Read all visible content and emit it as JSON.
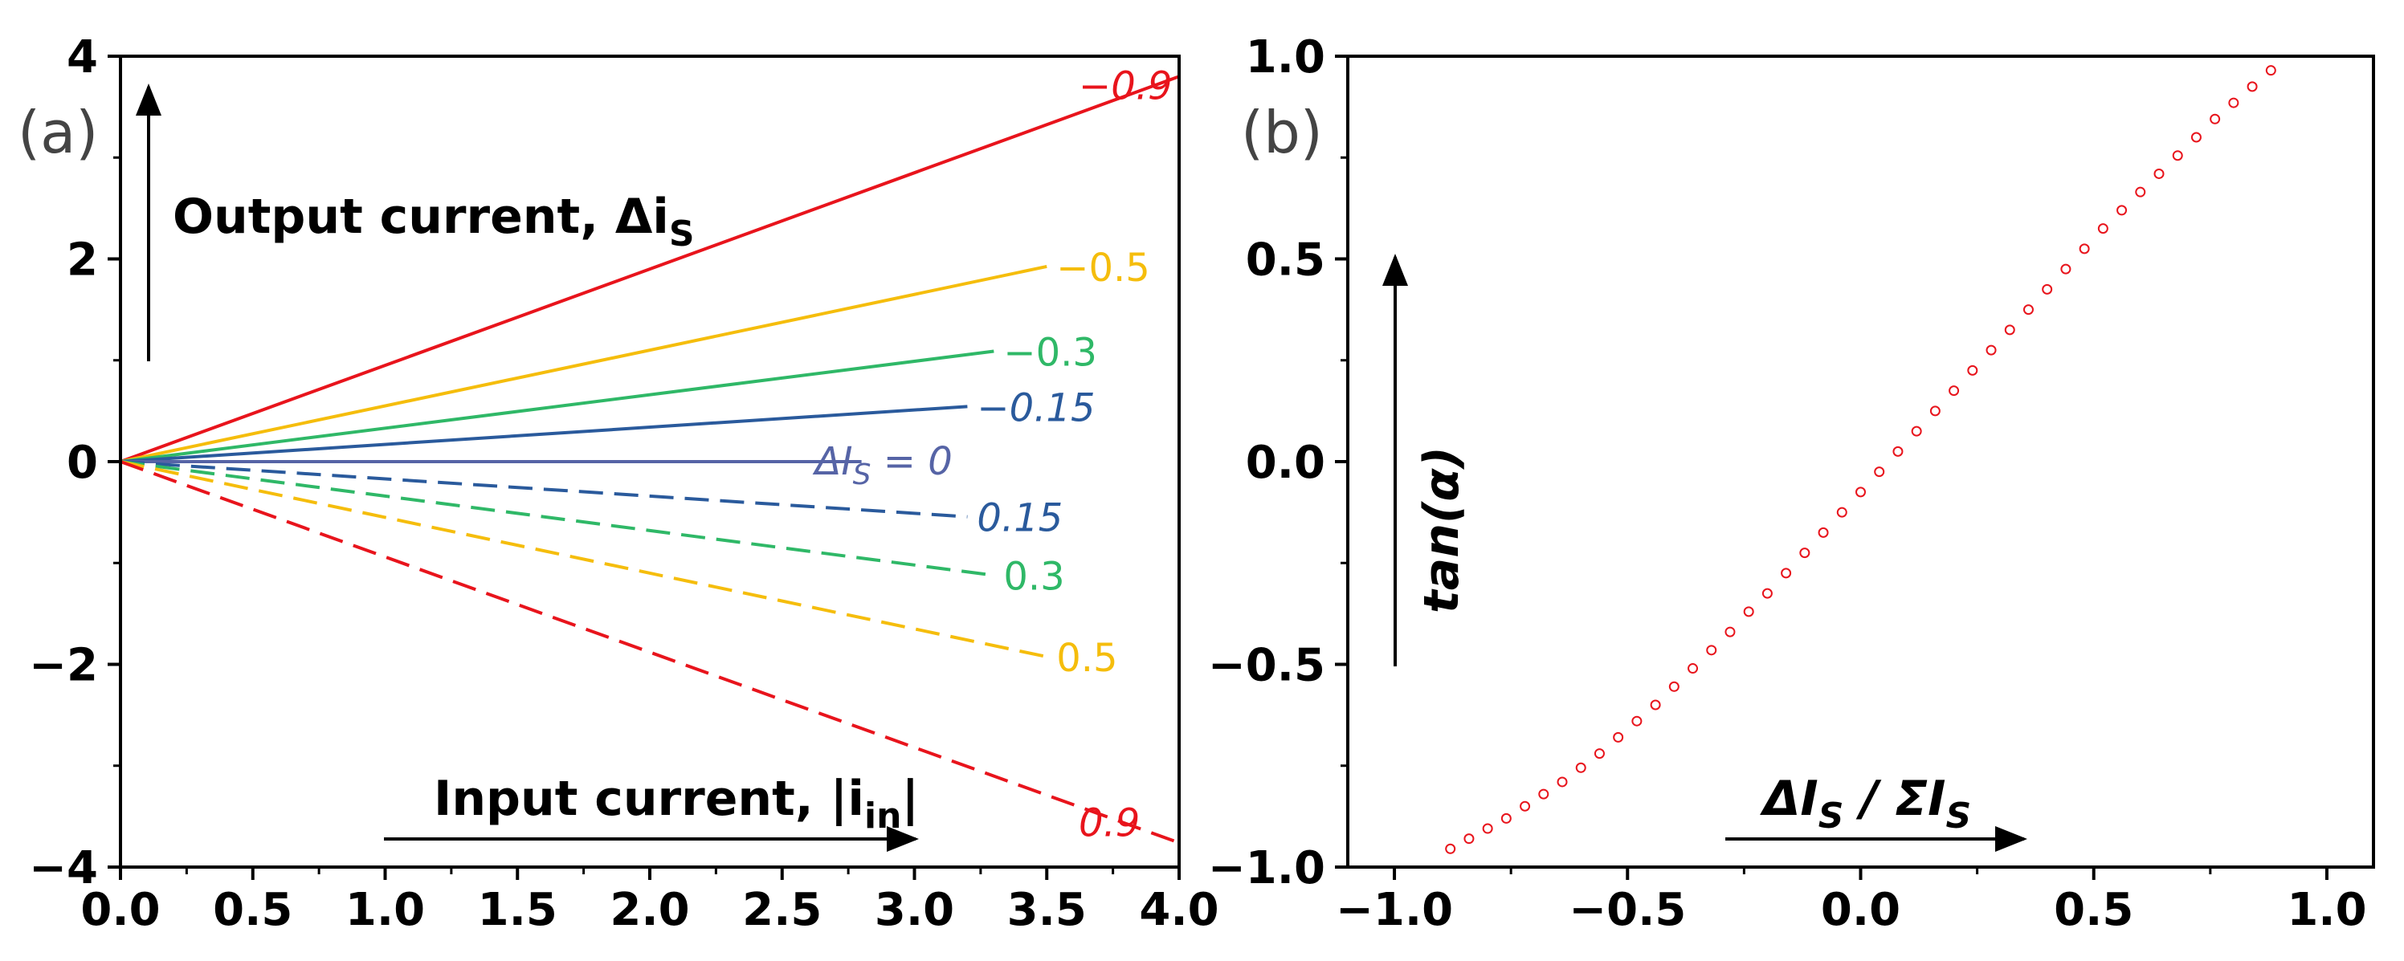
{
  "chart_data": [
    {
      "type": "line",
      "panel_label": "(a)",
      "xlim": [
        0,
        4
      ],
      "ylim": [
        -4,
        4
      ],
      "x_ticks": [
        0,
        0.5,
        1,
        1.5,
        2,
        2.5,
        3,
        3.5,
        4
      ],
      "x_tick_labels": [
        "0.0",
        "0.5",
        "1.0",
        "1.5",
        "2.0",
        "2.5",
        "3.0",
        "3.5",
        "4.0"
      ],
      "y_ticks": [
        -4,
        -2,
        0,
        2,
        4
      ],
      "y_tick_labels": [
        "−4",
        "−2",
        "0",
        "2",
        "4"
      ],
      "ylabel_arrow": "Output current, Δi",
      "ylabel_sub": "S",
      "xlabel_arrow": "Input current, |i",
      "xlabel_sub": "in",
      "xlabel_suffix": "|",
      "series": [
        {
          "name": "−0.9",
          "slope": 0.95,
          "x_end": 4.0,
          "color": "#e8141c",
          "dash": false
        },
        {
          "name": "−0.5",
          "slope": 0.55,
          "x_end": 3.5,
          "color": "#f5bd0c",
          "dash": false
        },
        {
          "name": "−0.3",
          "slope": 0.33,
          "x_end": 3.3,
          "color": "#2fb867",
          "dash": false
        },
        {
          "name": "−0.15",
          "slope": 0.17,
          "x_end": 3.2,
          "color": "#2a5a9c",
          "dash": false
        },
        {
          "name": "ΔI",
          "name_sub": "S",
          "name_suffix": " = 0",
          "slope": 0.0,
          "x_end": 2.8,
          "color": "#5664a6",
          "dash": false
        },
        {
          "name": "0.15",
          "slope": -0.17,
          "x_end": 3.2,
          "color": "#2a5a9c",
          "dash": true
        },
        {
          "name": "0.3",
          "slope": -0.34,
          "x_end": 3.3,
          "color": "#2fb867",
          "dash": true
        },
        {
          "name": "0.5",
          "slope": -0.55,
          "x_end": 3.5,
          "color": "#f5bd0c",
          "dash": true
        },
        {
          "name": "0.9",
          "slope": -0.94,
          "x_end": 4.0,
          "color": "#e8141c",
          "dash": true
        }
      ]
    },
    {
      "type": "scatter",
      "panel_label": "(b)",
      "xlim": [
        -1.1,
        1.1
      ],
      "ylim": [
        -1,
        1
      ],
      "x_ticks": [
        -1,
        -0.5,
        0,
        0.5,
        1
      ],
      "x_tick_labels": [
        "−1.0",
        "−0.5",
        "0.0",
        "0.5",
        "1.0"
      ],
      "y_ticks": [
        -1,
        -0.5,
        0,
        0.5,
        1
      ],
      "y_tick_labels": [
        "−1.0",
        "−0.5",
        "0.0",
        "0.5",
        "1.0"
      ],
      "ylabel_arrow": "tan(α)",
      "xlabel_arrow_parts": [
        "ΔI",
        "S",
        " / ΣI",
        "S"
      ],
      "marker_color": "#e8141c",
      "x": [
        -0.88,
        -0.84,
        -0.8,
        -0.76,
        -0.72,
        -0.68,
        -0.64,
        -0.6,
        -0.56,
        -0.52,
        -0.48,
        -0.44,
        -0.4,
        -0.36,
        -0.32,
        -0.28,
        -0.24,
        -0.2,
        -0.16,
        -0.12,
        -0.08,
        -0.04,
        0.0,
        0.04,
        0.08,
        0.12,
        0.16,
        0.2,
        0.24,
        0.28,
        0.32,
        0.36,
        0.4,
        0.44,
        0.48,
        0.52,
        0.56,
        0.6,
        0.64,
        0.68,
        0.72,
        0.76,
        0.8,
        0.84,
        0.88
      ],
      "y": [
        -0.955,
        -0.93,
        -0.905,
        -0.88,
        -0.85,
        -0.82,
        -0.79,
        -0.755,
        -0.72,
        -0.68,
        -0.64,
        -0.6,
        -0.555,
        -0.51,
        -0.465,
        -0.42,
        -0.37,
        -0.325,
        -0.275,
        -0.225,
        -0.175,
        -0.125,
        -0.075,
        -0.025,
        0.025,
        0.075,
        0.125,
        0.175,
        0.225,
        0.275,
        0.325,
        0.375,
        0.425,
        0.475,
        0.525,
        0.575,
        0.62,
        0.665,
        0.71,
        0.755,
        0.8,
        0.845,
        0.885,
        0.925,
        0.965
      ]
    }
  ]
}
